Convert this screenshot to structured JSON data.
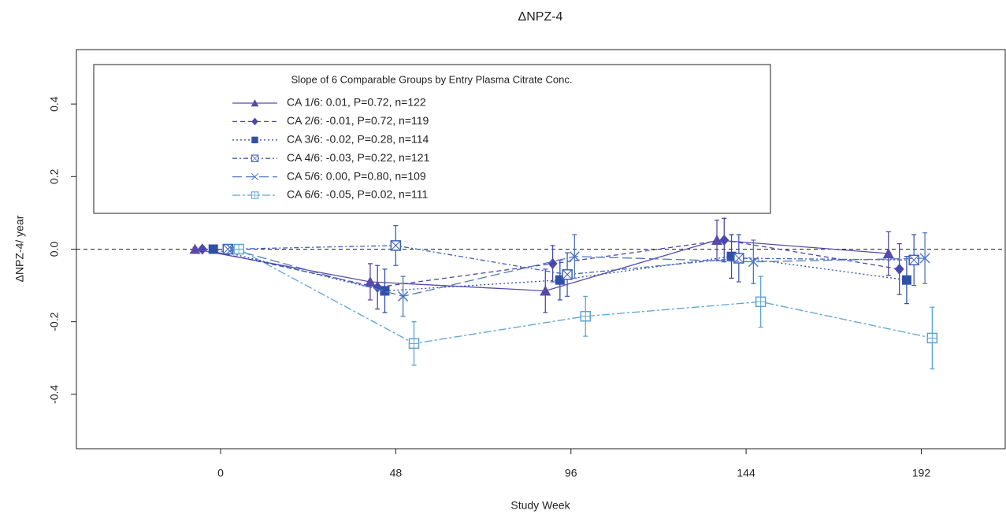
{
  "chart_data": {
    "type": "line",
    "title": "ΔNPZ-4",
    "xlabel": "Study Week",
    "ylabel": "ΔNPZ-4/ year",
    "legend_title": "Slope of 6 Comparable Groups by Entry Plasma Citrate Conc.",
    "legend_position": "upper left",
    "xlim": [
      -39.5,
      215
    ],
    "xticks": [
      0,
      48,
      96,
      144,
      192
    ],
    "ylim": [
      -0.55,
      0.55
    ],
    "yticks": [
      -0.4,
      -0.2,
      {
        "value": 0,
        "label": "0.0"
      },
      0.2,
      0.4
    ],
    "reference_line": 0,
    "series": [
      {
        "name": "CA 1/6:  0.01, P=0.72,   n=122",
        "color": "#5a4aa8",
        "linestyle": "solid",
        "marker": "triangle",
        "x": [
          -7,
          41,
          89,
          136,
          183
        ],
        "values": [
          0.0,
          -0.09,
          -0.115,
          0.025,
          -0.012
        ],
        "errors": [
          0.005,
          0.05,
          0.06,
          0.055,
          0.06
        ]
      },
      {
        "name": "CA 2/6: -0.01, P=0.72,   n=119",
        "color": "#4a48b0",
        "linestyle": "dashed",
        "marker": "diamond",
        "x": [
          -5,
          43,
          91,
          138,
          186
        ],
        "values": [
          0.0,
          -0.105,
          -0.04,
          0.025,
          -0.055
        ],
        "errors": [
          0.005,
          0.06,
          0.05,
          0.06,
          0.07
        ]
      },
      {
        "name": "CA 3/6: -0.02, P=0.28,   n=114",
        "color": "#3050a8",
        "linestyle": "dotted",
        "marker": "square",
        "x": [
          -2,
          45,
          93,
          140,
          188
        ],
        "values": [
          0.0,
          -0.115,
          -0.085,
          -0.02,
          -0.085
        ],
        "errors": [
          0.005,
          0.06,
          0.055,
          0.06,
          0.065
        ]
      },
      {
        "name": "CA 4/6: -0.03, P=0.22,   n=121",
        "color": "#4060b8",
        "linestyle": "dashdot",
        "marker": "boxed-x",
        "x": [
          2,
          48,
          95,
          142,
          190
        ],
        "values": [
          0.0,
          0.01,
          -0.07,
          -0.025,
          -0.03
        ],
        "errors": [
          0.005,
          0.055,
          0.06,
          0.065,
          0.07
        ]
      },
      {
        "name": "CA 5/6:  0.00, P=0.80,   n=109",
        "color": "#5078c0",
        "linestyle": "longdash",
        "marker": "x",
        "x": [
          3,
          50,
          97,
          146,
          193
        ],
        "values": [
          0.0,
          -0.13,
          -0.02,
          -0.035,
          -0.025
        ],
        "errors": [
          0.005,
          0.055,
          0.06,
          0.06,
          0.07
        ]
      },
      {
        "name": "CA 6/6: -0.05, P=0.02,   n=111",
        "color": "#5ba3d6",
        "linestyle": "twodash",
        "marker": "boxed-plus",
        "x": [
          5,
          53,
          100,
          148,
          195
        ],
        "values": [
          0.0,
          -0.26,
          -0.185,
          -0.145,
          -0.245
        ],
        "errors": [
          0.005,
          0.06,
          0.055,
          0.07,
          0.085
        ]
      }
    ]
  }
}
